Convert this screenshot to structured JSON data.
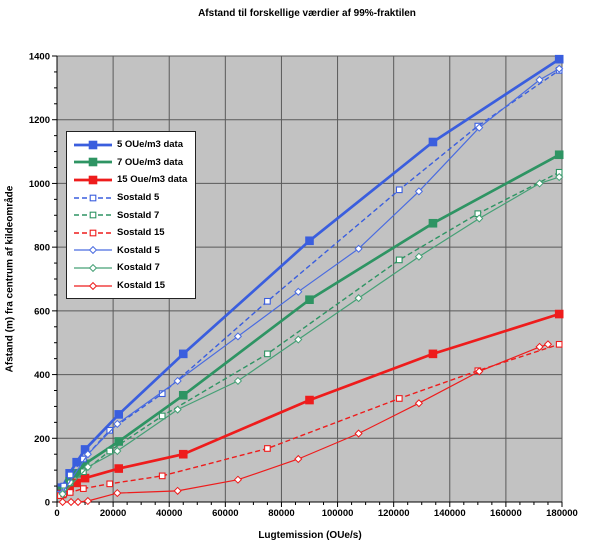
{
  "chart_data": {
    "type": "line",
    "title": "Afstand til forskellige værdier af 99%-fraktilen",
    "xlabel": "Lugtemission (OUe/s)",
    "ylabel": "Afstand (m) fra centrum af kildeområde",
    "xlim": [
      0,
      180000
    ],
    "ylim": [
      0,
      1400
    ],
    "xtick_labels": [
      "0",
      "20000",
      "40000",
      "60000",
      "80000",
      "100000",
      "120000",
      "140000",
      "160000",
      "180000"
    ],
    "ytick_labels": [
      "0",
      "200",
      "400",
      "600",
      "800",
      "1000",
      "1200",
      "1400"
    ],
    "x_minor_step": 5000,
    "y_minor_step": 50,
    "grid": true,
    "plot_bg": "#c2c2c2",
    "grid_color": "#5a5a5a",
    "axis_color": "#000000",
    "legend_position": "upper-left-inside",
    "series": [
      {
        "name": "5 OUe/m3 data",
        "color": "#3a5ede",
        "line": "solid-thick",
        "marker": "square-filled",
        "x": [
          1800,
          4500,
          7000,
          10000,
          22000,
          45000,
          90000,
          134000,
          179000
        ],
        "y": [
          45,
          90,
          125,
          165,
          275,
          465,
          820,
          1130,
          1390
        ]
      },
      {
        "name": "7 OUe/m3 data",
        "color": "#2e9463",
        "line": "solid-thick",
        "marker": "square-filled",
        "x": [
          1800,
          4500,
          7000,
          10000,
          22000,
          45000,
          90000,
          134000,
          179000
        ],
        "y": [
          35,
          65,
          90,
          120,
          190,
          335,
          635,
          875,
          1090
        ]
      },
      {
        "name": "15 Oue/m3 data",
        "color": "#ee1c1c",
        "line": "solid-thick",
        "marker": "square-filled",
        "x": [
          1800,
          4500,
          7000,
          10000,
          22000,
          45000,
          90000,
          134000,
          179000
        ],
        "y": [
          25,
          45,
          60,
          75,
          105,
          150,
          320,
          465,
          590
        ]
      },
      {
        "name": "Sostald 5",
        "color": "#3a5ede",
        "line": "dashed",
        "marker": "square-open",
        "x": [
          1200,
          2400,
          4700,
          9400,
          18800,
          37500,
          75000,
          122000,
          150000,
          179000
        ],
        "y": [
          25,
          50,
          85,
          135,
          225,
          340,
          630,
          980,
          1180,
          1355
        ]
      },
      {
        "name": "Sostald 7",
        "color": "#2e9463",
        "line": "dashed",
        "marker": "square-open",
        "x": [
          1200,
          2400,
          4700,
          9400,
          18800,
          37500,
          75000,
          122000,
          150000,
          179000
        ],
        "y": [
          20,
          35,
          60,
          95,
          160,
          270,
          465,
          760,
          905,
          1035
        ]
      },
      {
        "name": "Sostald 15",
        "color": "#ee1c1c",
        "line": "dashed",
        "marker": "square-open",
        "x": [
          1200,
          2400,
          4700,
          9400,
          18800,
          37500,
          75000,
          122000,
          150000,
          179000
        ],
        "y": [
          20,
          25,
          30,
          42,
          57,
          82,
          168,
          325,
          412,
          495
        ]
      },
      {
        "name": "Kostald 5",
        "color": "#4a6ce0",
        "line": "solid-thin",
        "marker": "diamond-open",
        "x": [
          2000,
          11000,
          21500,
          43000,
          64500,
          86000,
          107500,
          129000,
          150500,
          172000,
          179000
        ],
        "y": [
          30,
          150,
          245,
          380,
          520,
          660,
          795,
          975,
          1175,
          1325,
          1360
        ]
      },
      {
        "name": "Kostald 7",
        "color": "#46a076",
        "line": "solid-thin",
        "marker": "diamond-open",
        "x": [
          2000,
          11000,
          21500,
          43000,
          64500,
          86000,
          107500,
          129000,
          150500,
          172000,
          179000
        ],
        "y": [
          25,
          110,
          160,
          290,
          380,
          510,
          640,
          770,
          890,
          1000,
          1020
        ]
      },
      {
        "name": "Kostald 15",
        "color": "#ee1c1c",
        "line": "solid-thin",
        "marker": "diamond-open",
        "x": [
          2000,
          5000,
          7500,
          11000,
          21500,
          43000,
          64500,
          86000,
          107500,
          129000,
          150500,
          172000,
          175000
        ],
        "y": [
          0,
          0,
          0,
          3,
          28,
          35,
          70,
          135,
          215,
          310,
          410,
          487,
          495
        ]
      }
    ]
  }
}
